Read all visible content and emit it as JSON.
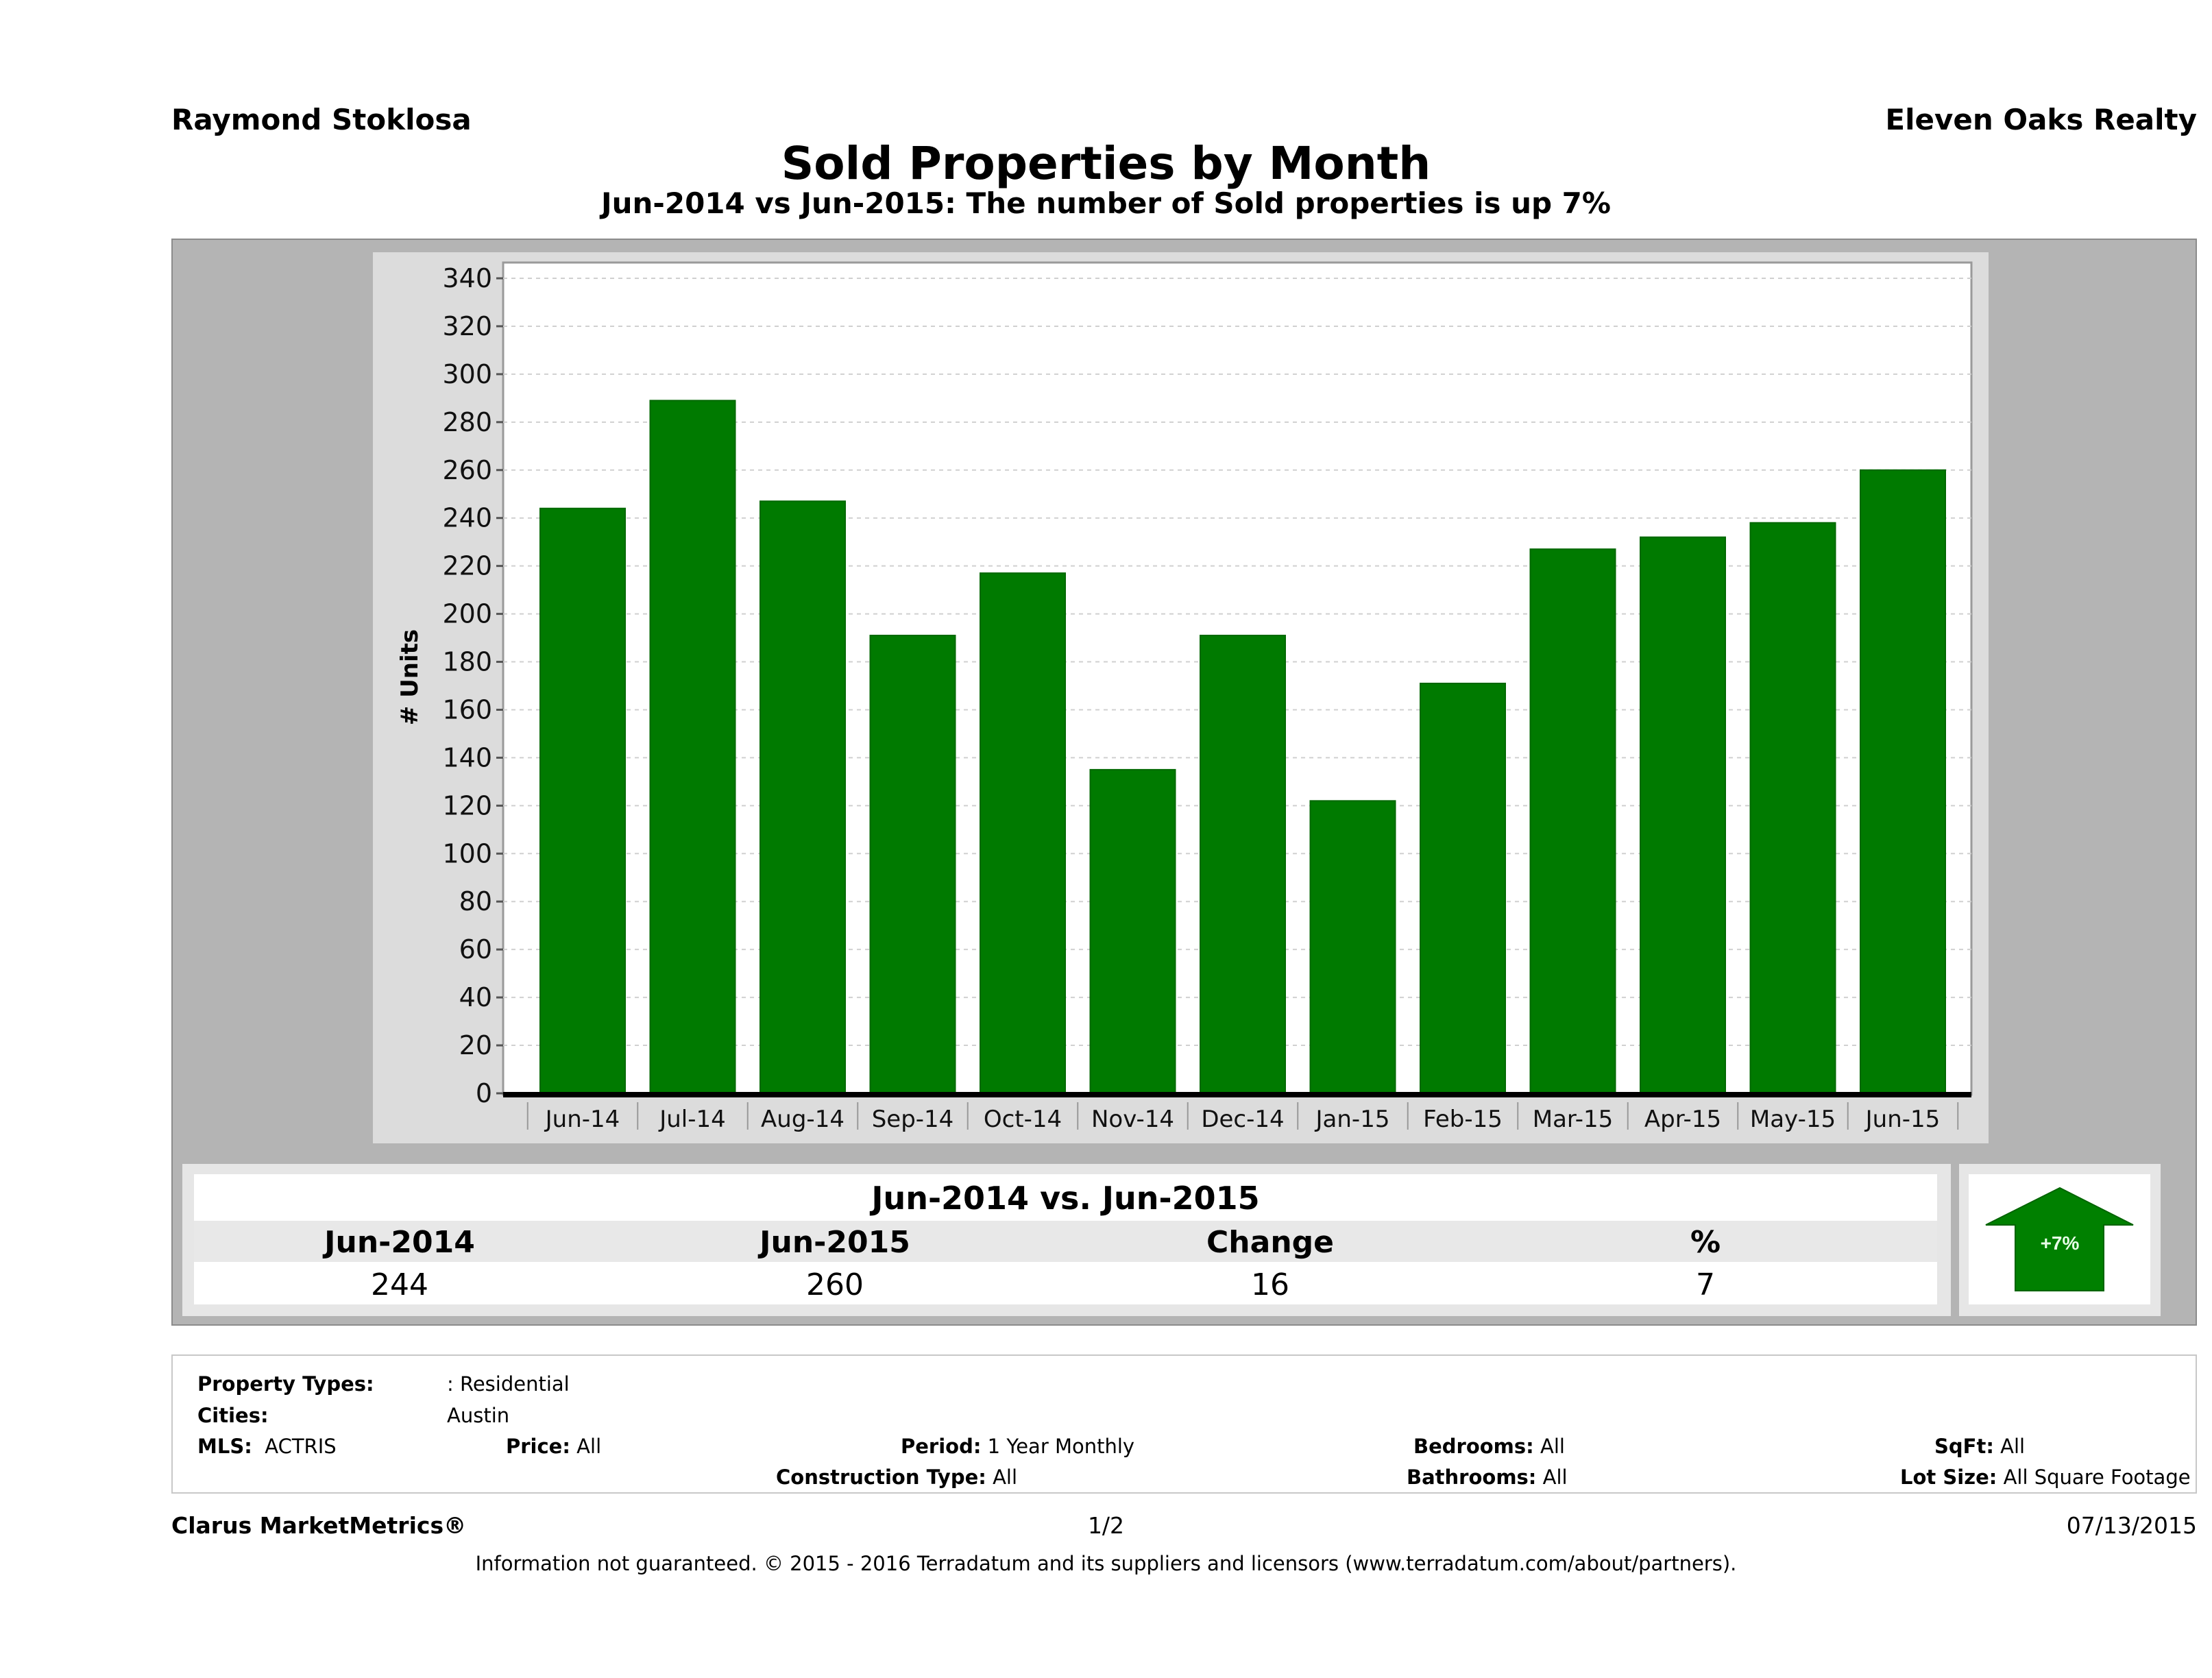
{
  "header": {
    "agent": "Raymond Stoklosa",
    "company": "Eleven Oaks Realty",
    "title": "Sold Properties by Month",
    "subtitle": "Jun-2014 vs Jun-2015: The number of Sold  properties is up 7%"
  },
  "colors": {
    "bar": "#007a00",
    "arrow": "#008000",
    "panel": "#b4b4b4",
    "chart_bg": "#dcdcdc"
  },
  "chart_data": {
    "type": "bar",
    "title": "Sold Properties by Month",
    "xlabel": "",
    "ylabel": "# Units",
    "ylim": [
      0,
      340
    ],
    "yticks": [
      0,
      20,
      40,
      60,
      80,
      100,
      120,
      140,
      160,
      180,
      200,
      220,
      240,
      260,
      280,
      300,
      320,
      340
    ],
    "grid": true,
    "categories": [
      "Jun-14",
      "Jul-14",
      "Aug-14",
      "Sep-14",
      "Oct-14",
      "Nov-14",
      "Dec-14",
      "Jan-15",
      "Feb-15",
      "Mar-15",
      "Apr-15",
      "May-15",
      "Jun-15"
    ],
    "series": [
      {
        "name": "Sold",
        "values": [
          244,
          289,
          247,
          191,
          217,
          135,
          191,
          122,
          171,
          227,
          232,
          238,
          260
        ]
      }
    ]
  },
  "summary": {
    "title": "Jun-2014 vs. Jun-2015",
    "headers": [
      "Jun-2014",
      "Jun-2015",
      "Change",
      "%"
    ],
    "values": [
      "244",
      "260",
      "16",
      "7"
    ],
    "badge": "+7%"
  },
  "filters": {
    "property_types_label": "Property Types:",
    "property_types_value": ": Residential",
    "cities_label": "Cities:",
    "cities_value": "Austin",
    "mls_label": "MLS:",
    "mls_value": "ACTRIS",
    "price_label": "Price:",
    "price_value": "All",
    "period_label": "Period:",
    "period_value": "1 Year Monthly",
    "construction_label": "Construction Type:",
    "construction_value": "All",
    "bedrooms_label": "Bedrooms:",
    "bedrooms_value": "All",
    "bathrooms_label": "Bathrooms:",
    "bathrooms_value": "All",
    "sqft_label": "SqFt:",
    "sqft_value": "All",
    "lot_label": "Lot Size:",
    "lot_value": "All Square Footage"
  },
  "footer": {
    "brand": "Clarus MarketMetrics®",
    "page": "1/2",
    "date": "07/13/2015",
    "disclaimer": "Information not guaranteed. © 2015 - 2016 Terradatum and its suppliers and licensors (www.terradatum.com/about/partners)."
  }
}
